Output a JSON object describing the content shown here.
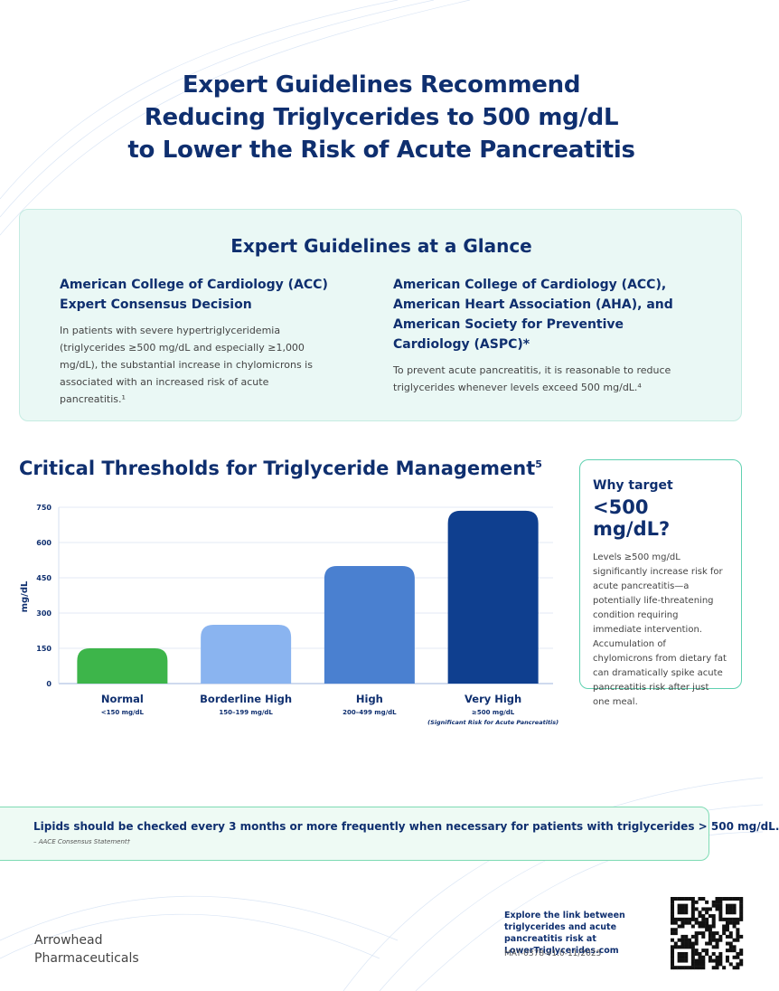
{
  "header": {
    "title_lines": [
      "Expert Guidelines Recommend",
      "Reducing Triglycerides to 500 mg/dL",
      "to Lower the Risk of Acute Pancreatitis"
    ]
  },
  "guidelines": {
    "heading": "Expert Guidelines at a Glance",
    "items": [
      {
        "org": "American College of Cardiology (ACC) Expert Consensus Decision",
        "text": "In patients with severe hypertriglyceridemia (triglycerides ≥500 mg/dL and especially ≥1,000 mg/dL), the substantial increase in chylomicrons is associated with an increased risk of acute pancreatitis.¹"
      },
      {
        "org": "American College of Cardiology (ACC), American Heart Association (AHA), and American Society for Preventive Cardiology (ASPC)*",
        "text": "To prevent acute pancreatitis, it is reasonable to reduce triglycerides whenever levels exceed 500 mg/dL.⁴"
      }
    ]
  },
  "chart_data": {
    "type": "bar",
    "title": "Critical Thresholds for Triglyceride Management",
    "title_note": "5",
    "y_label": "mg/dL",
    "categories": [
      "Normal",
      "Borderline High",
      "High",
      "Very High"
    ],
    "category_ranges": [
      "<150 mg/dL",
      "150–199 mg/dL",
      "200–499 mg/dL",
      "≥500 mg/dL"
    ],
    "annotation": "(Significant Risk for Acute Pancreatitis)",
    "values": [
      150,
      250,
      500,
      735
    ],
    "colors": [
      "#3db54a",
      "#8ab4f0",
      "#4a80d0",
      "#0f3f8f"
    ],
    "ylim": [
      0,
      750
    ],
    "yticks": [
      0,
      150,
      300,
      450,
      600,
      750
    ],
    "grid": true
  },
  "sidebar": {
    "lead": "Why target",
    "headline": "<500 mg/dL?",
    "text": "Levels ≥500 mg/dL significantly increase risk for acute pancreatitis—a potentially life-threatening condition requiring immediate intervention. Accumulation of chylomicrons from dietary fat can dramatically spike acute pancreatitis risk after just one meal."
  },
  "callout": {
    "text": "Lipids should be checked every 3 months or more frequently when necessary for patients with triglycerides > 500 mg/dL.",
    "source": "– AACE Consensus Statement†"
  },
  "footer": {
    "company": "Arrowhead Pharmaceuticals",
    "cta": "Explore the link between triglycerides and acute pancreatitis risk at LowerTriglycerides.com",
    "code": "MAT-0378-v1.0-11/2025"
  }
}
